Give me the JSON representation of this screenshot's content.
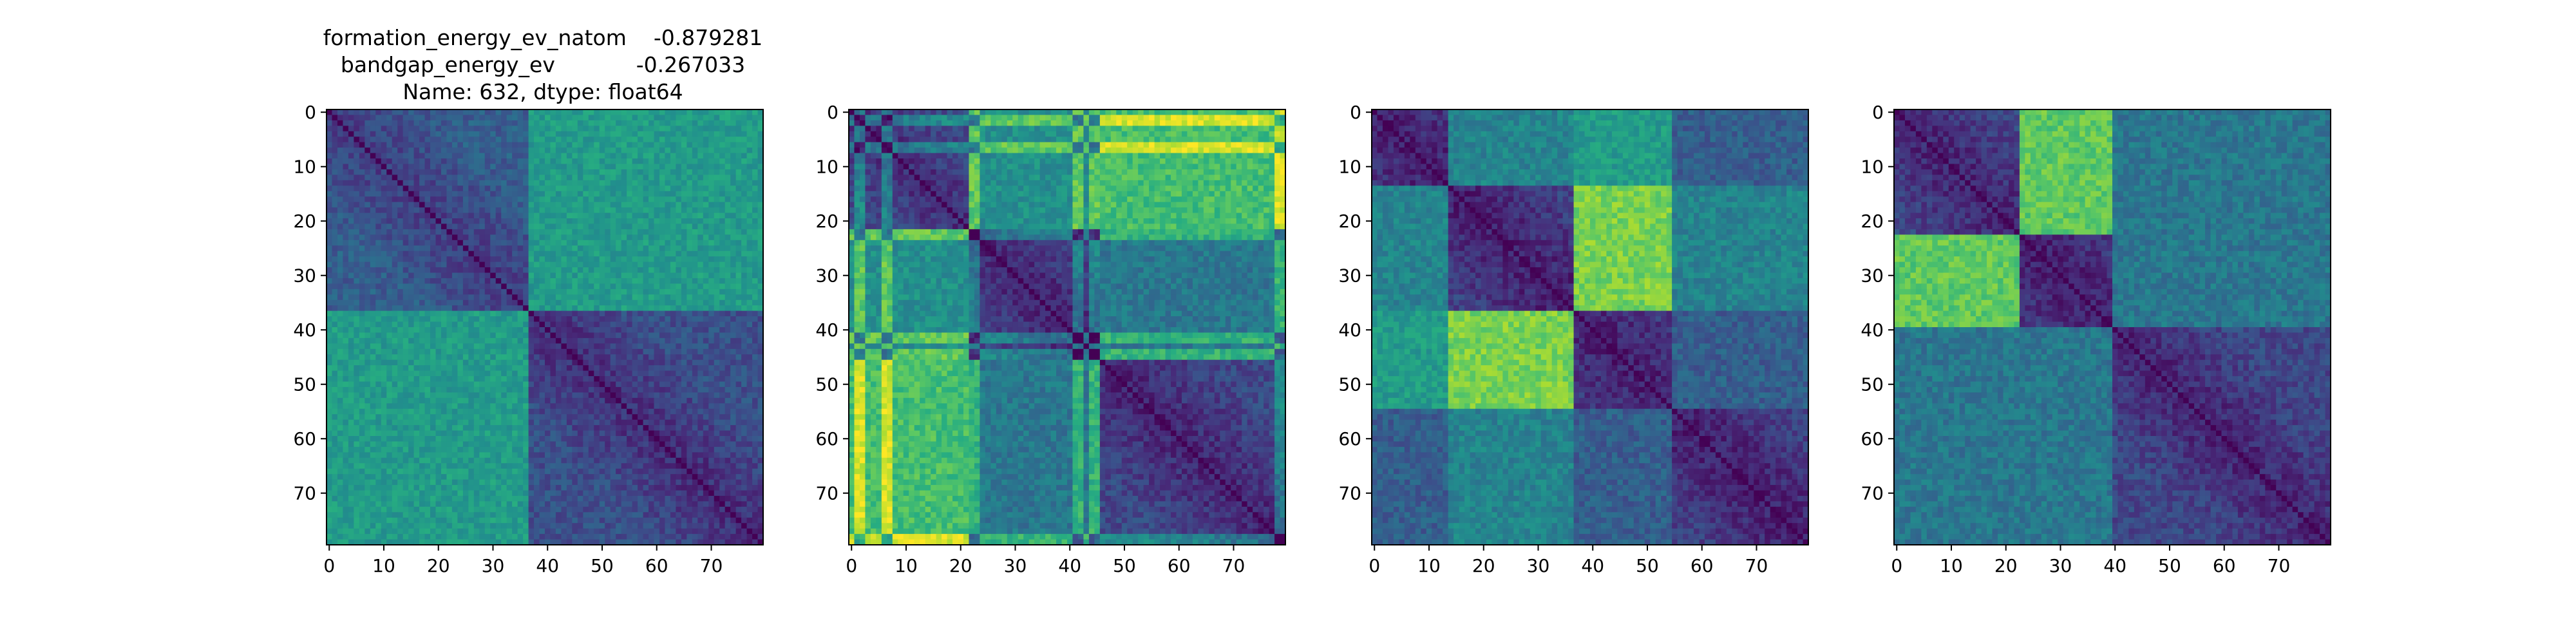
{
  "figure": {
    "title_lines": [
      "formation_energy_ev_natom    -0.879281",
      "bandgap_energy_ev            -0.267033",
      "Name: 632, dtype: float64"
    ]
  },
  "chart_data": [
    {
      "type": "heatmap",
      "colormap": "viridis",
      "grid": false,
      "size": 80,
      "xlim": [
        -0.5,
        79.5
      ],
      "ylim": [
        79.5,
        -0.5
      ],
      "x_ticks": [
        "0",
        "10",
        "20",
        "30",
        "40",
        "50",
        "60",
        "70"
      ],
      "y_ticks": [
        "0",
        "10",
        "20",
        "30",
        "40",
        "50",
        "60",
        "70"
      ],
      "blocks": [
        [
          0,
          37
        ],
        [
          37,
          80
        ]
      ],
      "block_values": [
        [
          0.3,
          0.55
        ],
        [
          0.55,
          0.25
        ]
      ],
      "diagonal": "dark"
    },
    {
      "type": "heatmap",
      "colormap": "viridis",
      "grid": false,
      "size": 80,
      "xlim": [
        -0.5,
        79.5
      ],
      "ylim": [
        79.5,
        -0.5
      ],
      "x_ticks": [
        "0",
        "10",
        "20",
        "30",
        "40",
        "50",
        "60",
        "70"
      ],
      "y_ticks": [
        "0",
        "10",
        "20",
        "30",
        "40",
        "50",
        "60",
        "70"
      ],
      "blocks": [
        [
          0,
          22
        ],
        [
          22,
          46
        ],
        [
          46,
          80
        ]
      ],
      "block_values": [
        [
          0.25,
          0.5,
          0.7
        ],
        [
          0.5,
          0.22,
          0.4
        ],
        [
          0.7,
          0.4,
          0.22
        ]
      ],
      "stripes": [
        1,
        2,
        6,
        7,
        22,
        23,
        41,
        42,
        44,
        45,
        78,
        79
      ],
      "diagonal": "dark"
    },
    {
      "type": "heatmap",
      "colormap": "viridis",
      "grid": false,
      "size": 80,
      "xlim": [
        -0.5,
        79.5
      ],
      "ylim": [
        79.5,
        -0.5
      ],
      "x_ticks": [
        "0",
        "10",
        "20",
        "30",
        "40",
        "50",
        "60",
        "70"
      ],
      "y_ticks": [
        "0",
        "10",
        "20",
        "30",
        "40",
        "50",
        "60",
        "70"
      ],
      "blocks": [
        [
          0,
          14
        ],
        [
          14,
          37
        ],
        [
          37,
          55
        ],
        [
          55,
          80
        ]
      ],
      "block_values": [
        [
          0.2,
          0.45,
          0.55,
          0.3
        ],
        [
          0.45,
          0.2,
          0.8,
          0.45
        ],
        [
          0.55,
          0.8,
          0.2,
          0.3
        ],
        [
          0.3,
          0.45,
          0.3,
          0.2
        ]
      ],
      "diagonal": "dark"
    },
    {
      "type": "heatmap",
      "colormap": "viridis",
      "grid": false,
      "size": 80,
      "xlim": [
        -0.5,
        79.5
      ],
      "ylim": [
        79.5,
        -0.5
      ],
      "x_ticks": [
        "0",
        "10",
        "20",
        "30",
        "40",
        "50",
        "60",
        "70"
      ],
      "y_ticks": [
        "0",
        "10",
        "20",
        "30",
        "40",
        "50",
        "60",
        "70"
      ],
      "blocks": [
        [
          0,
          23
        ],
        [
          23,
          40
        ],
        [
          40,
          80
        ]
      ],
      "block_values": [
        [
          0.22,
          0.75,
          0.4
        ],
        [
          0.75,
          0.2,
          0.4
        ],
        [
          0.4,
          0.4,
          0.22
        ]
      ],
      "diagonal": "dark"
    }
  ]
}
